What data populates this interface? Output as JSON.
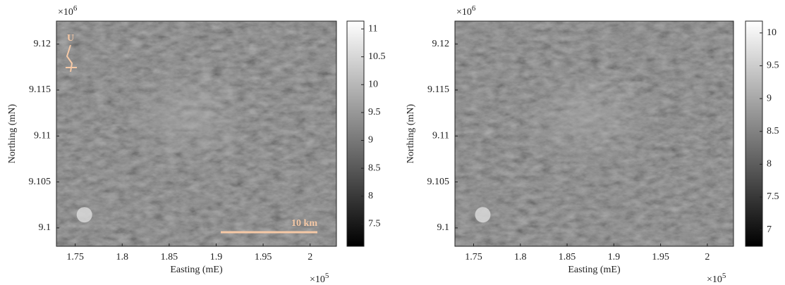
{
  "chart_data": [
    {
      "type": "image",
      "xlabel": "Easting (mE)",
      "ylabel": "Northing (mN)",
      "x_multiplier": {
        "base": "×10",
        "exponent": "5"
      },
      "y_multiplier": {
        "base": "×10",
        "exponent": "6"
      },
      "xlim": [
        1.73,
        2.028
      ],
      "xticks": [
        1.75,
        1.8,
        1.85,
        1.9,
        1.95,
        2
      ],
      "ylim": [
        9.098,
        9.1225
      ],
      "yticks": [
        9.1,
        9.105,
        9.11,
        9.115,
        9.12
      ],
      "clim": [
        7.1,
        11.14
      ],
      "cticks": [
        7.5,
        8,
        8.5,
        9,
        9.5,
        10,
        10.5,
        11
      ],
      "annotations": {
        "scale_bar": "10 km",
        "north_label": "U"
      }
    },
    {
      "type": "image",
      "xlabel": "Easting (mE)",
      "ylabel": "Northing (mN)",
      "x_multiplier": {
        "base": "×10",
        "exponent": "5"
      },
      "y_multiplier": {
        "base": "×10",
        "exponent": "6"
      },
      "xlim": [
        1.73,
        2.028
      ],
      "xticks": [
        1.75,
        1.8,
        1.85,
        1.9,
        1.95,
        2
      ],
      "ylim": [
        9.098,
        9.1225
      ],
      "yticks": [
        9.1,
        9.105,
        9.11,
        9.115,
        9.12
      ],
      "clim": [
        6.75,
        10.18
      ],
      "cticks": [
        7,
        7.5,
        8,
        8.5,
        9,
        9.5,
        10
      ]
    }
  ]
}
